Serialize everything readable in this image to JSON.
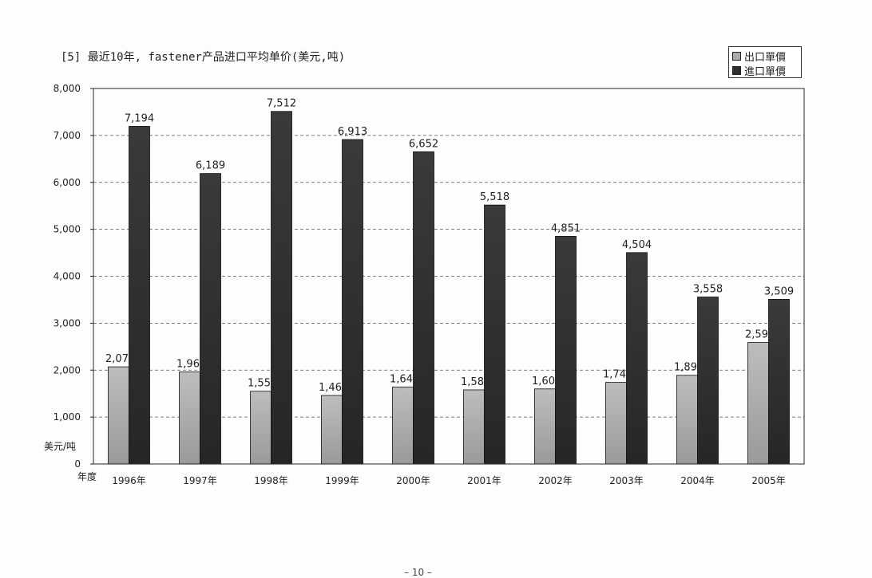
{
  "page_number": "– 10 –",
  "chart_data": {
    "type": "bar",
    "title": "[5] 最近10年, fastener产品进口平均单价(美元,吨)",
    "ylabel": "美元/吨",
    "xlabel": "年度",
    "ylim": [
      0,
      8000
    ],
    "yticks": [
      "0",
      "1,000",
      "2,000",
      "3,000",
      "4,000",
      "5,000",
      "6,000",
      "7,000",
      "8,000"
    ],
    "grid": true,
    "legend_position": "top-right",
    "categories": [
      "1996年",
      "1997年",
      "1998年",
      "1999年",
      "2000年",
      "2001年",
      "2002年",
      "2003年",
      "2004年",
      "2005年"
    ],
    "series": [
      {
        "name": "出口單價",
        "color": "#a9a9a9",
        "values": [
          2070,
          1960,
          1550,
          1460,
          1640,
          1580,
          1600,
          1740,
          1890,
          2590
        ],
        "labels": [
          "2,07",
          "1,96",
          "1,55",
          "1,46",
          "1,64",
          "1,58",
          "1,60",
          "1,74",
          "1,89",
          "2,59"
        ]
      },
      {
        "name": "進口單價",
        "color": "#2e2e2e",
        "values": [
          7194,
          6189,
          7512,
          6913,
          6652,
          5518,
          4851,
          4504,
          3558,
          3509
        ],
        "labels": [
          "7,194",
          "6,189",
          "7,512",
          "6,913",
          "6,652",
          "5,518",
          "4,851",
          "4,504",
          "3,558",
          "3,509"
        ]
      }
    ]
  }
}
